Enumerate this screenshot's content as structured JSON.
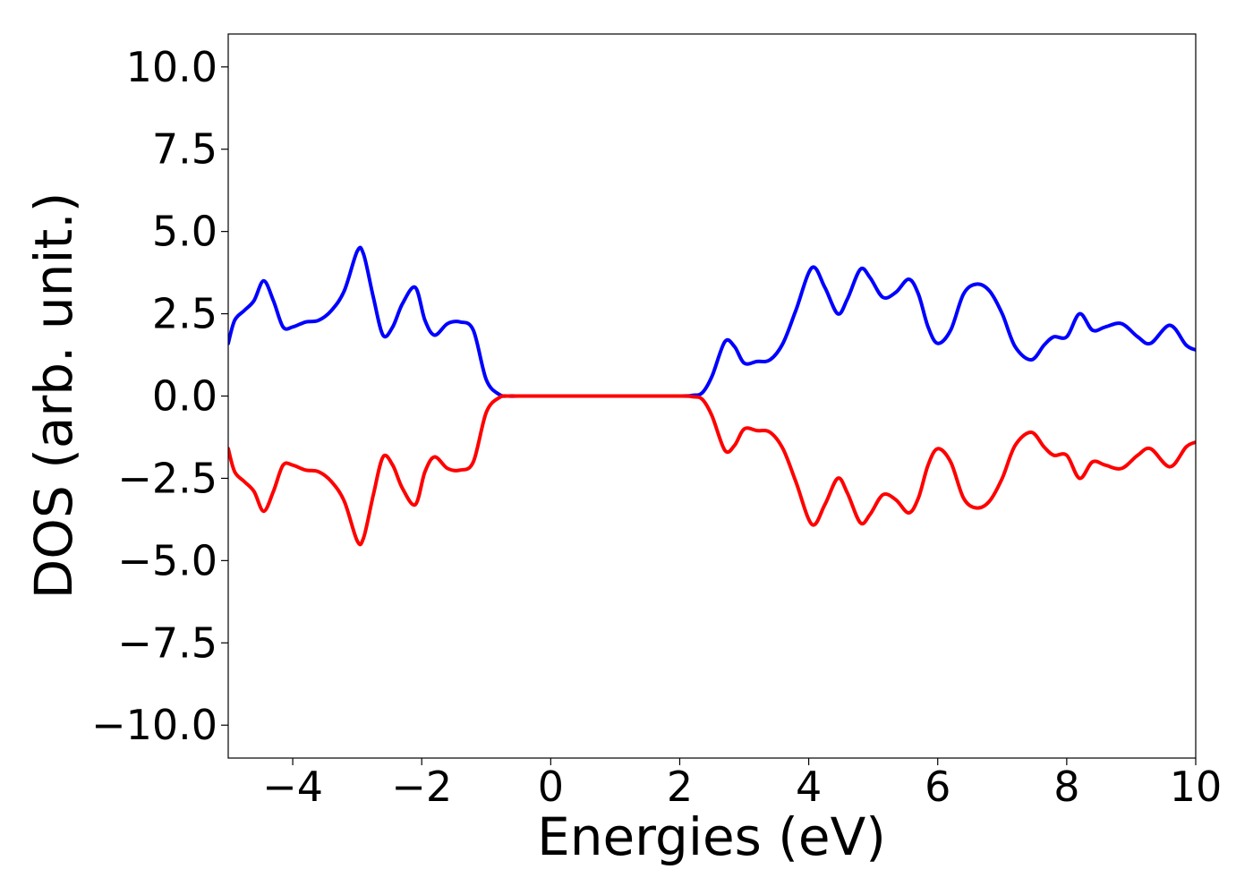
{
  "chart_data": {
    "type": "line",
    "title": "",
    "xlabel": "Energies (eV)",
    "ylabel": "DOS (arb. unit.)",
    "xlim": [
      -5,
      10
    ],
    "ylim": [
      -11,
      11
    ],
    "xticks": [
      -4,
      -2,
      0,
      2,
      4,
      6,
      8,
      10
    ],
    "xtick_labels": [
      "−4",
      "−2",
      "0",
      "2",
      "4",
      "6",
      "8",
      "10"
    ],
    "yticks": [
      10.0,
      7.5,
      5.0,
      2.5,
      0.0,
      -2.5,
      -5.0,
      -7.5,
      -10.0
    ],
    "ytick_labels": [
      "10.0",
      "7.5",
      "5.0",
      "2.5",
      "0.0",
      "−2.5",
      "−5.0",
      "−7.5",
      "−10.0"
    ],
    "grid": false,
    "legend": "none",
    "series": [
      {
        "color": "#0000ff",
        "x": [
          -5.0,
          -4.9,
          -4.75,
          -4.6,
          -4.45,
          -4.3,
          -4.15,
          -4.0,
          -3.8,
          -3.6,
          -3.4,
          -3.2,
          -3.0,
          -2.9,
          -2.75,
          -2.6,
          -2.45,
          -2.3,
          -2.1,
          -1.95,
          -1.8,
          -1.6,
          -1.4,
          -1.2,
          -1.0,
          -0.8,
          -0.65,
          -0.5,
          0.0,
          1.0,
          2.0,
          2.2,
          2.35,
          2.5,
          2.7,
          2.85,
          3.0,
          3.2,
          3.4,
          3.6,
          3.8,
          4.05,
          4.25,
          4.45,
          4.6,
          4.8,
          4.95,
          5.15,
          5.35,
          5.55,
          5.7,
          5.85,
          6.0,
          6.2,
          6.4,
          6.6,
          6.8,
          7.0,
          7.2,
          7.45,
          7.65,
          7.8,
          8.0,
          8.2,
          8.4,
          8.6,
          8.85,
          9.1,
          9.3,
          9.6,
          9.85,
          10.0
        ],
        "y": [
          1.6,
          2.3,
          2.6,
          2.9,
          3.5,
          2.9,
          2.1,
          2.1,
          2.25,
          2.3,
          2.6,
          3.2,
          4.4,
          4.3,
          3.0,
          1.85,
          2.1,
          2.8,
          3.3,
          2.3,
          1.85,
          2.2,
          2.25,
          2.0,
          0.5,
          0.05,
          0.0,
          0.0,
          0.0,
          0.0,
          0.0,
          0.02,
          0.1,
          0.6,
          1.65,
          1.5,
          1.0,
          1.05,
          1.1,
          1.6,
          2.6,
          3.9,
          3.3,
          2.5,
          2.95,
          3.85,
          3.6,
          3.0,
          3.15,
          3.55,
          3.1,
          2.1,
          1.6,
          2.0,
          3.1,
          3.4,
          3.2,
          2.5,
          1.5,
          1.1,
          1.55,
          1.8,
          1.8,
          2.5,
          2.0,
          2.1,
          2.2,
          1.8,
          1.6,
          2.15,
          1.55,
          1.4
        ]
      },
      {
        "color": "#ff0000",
        "x": [
          -5.0,
          -4.9,
          -4.75,
          -4.6,
          -4.45,
          -4.3,
          -4.15,
          -4.0,
          -3.8,
          -3.6,
          -3.4,
          -3.2,
          -3.0,
          -2.9,
          -2.75,
          -2.6,
          -2.45,
          -2.3,
          -2.1,
          -1.95,
          -1.8,
          -1.6,
          -1.4,
          -1.2,
          -1.0,
          -0.8,
          -0.65,
          -0.5,
          0.0,
          1.0,
          2.0,
          2.2,
          2.35,
          2.5,
          2.7,
          2.85,
          3.0,
          3.2,
          3.4,
          3.6,
          3.8,
          4.05,
          4.25,
          4.45,
          4.6,
          4.8,
          4.95,
          5.15,
          5.35,
          5.55,
          5.7,
          5.85,
          6.0,
          6.2,
          6.4,
          6.6,
          6.8,
          7.0,
          7.2,
          7.45,
          7.65,
          7.8,
          8.0,
          8.2,
          8.4,
          8.6,
          8.85,
          9.1,
          9.3,
          9.6,
          9.85,
          10.0
        ],
        "y": [
          -1.6,
          -2.3,
          -2.6,
          -2.9,
          -3.5,
          -2.9,
          -2.1,
          -2.1,
          -2.25,
          -2.3,
          -2.6,
          -3.2,
          -4.4,
          -4.3,
          -3.0,
          -1.85,
          -2.1,
          -2.8,
          -3.3,
          -2.3,
          -1.85,
          -2.2,
          -2.25,
          -2.0,
          -0.5,
          -0.05,
          0.0,
          0.0,
          0.0,
          0.0,
          0.0,
          -0.02,
          -0.1,
          -0.6,
          -1.65,
          -1.5,
          -1.0,
          -1.05,
          -1.1,
          -1.6,
          -2.6,
          -3.9,
          -3.3,
          -2.5,
          -2.95,
          -3.85,
          -3.6,
          -3.0,
          -3.15,
          -3.55,
          -3.1,
          -2.1,
          -1.6,
          -2.0,
          -3.1,
          -3.4,
          -3.2,
          -2.5,
          -1.5,
          -1.1,
          -1.55,
          -1.8,
          -1.8,
          -2.5,
          -2.0,
          -2.1,
          -2.2,
          -1.8,
          -1.6,
          -2.15,
          -1.55,
          -1.4
        ]
      }
    ]
  }
}
